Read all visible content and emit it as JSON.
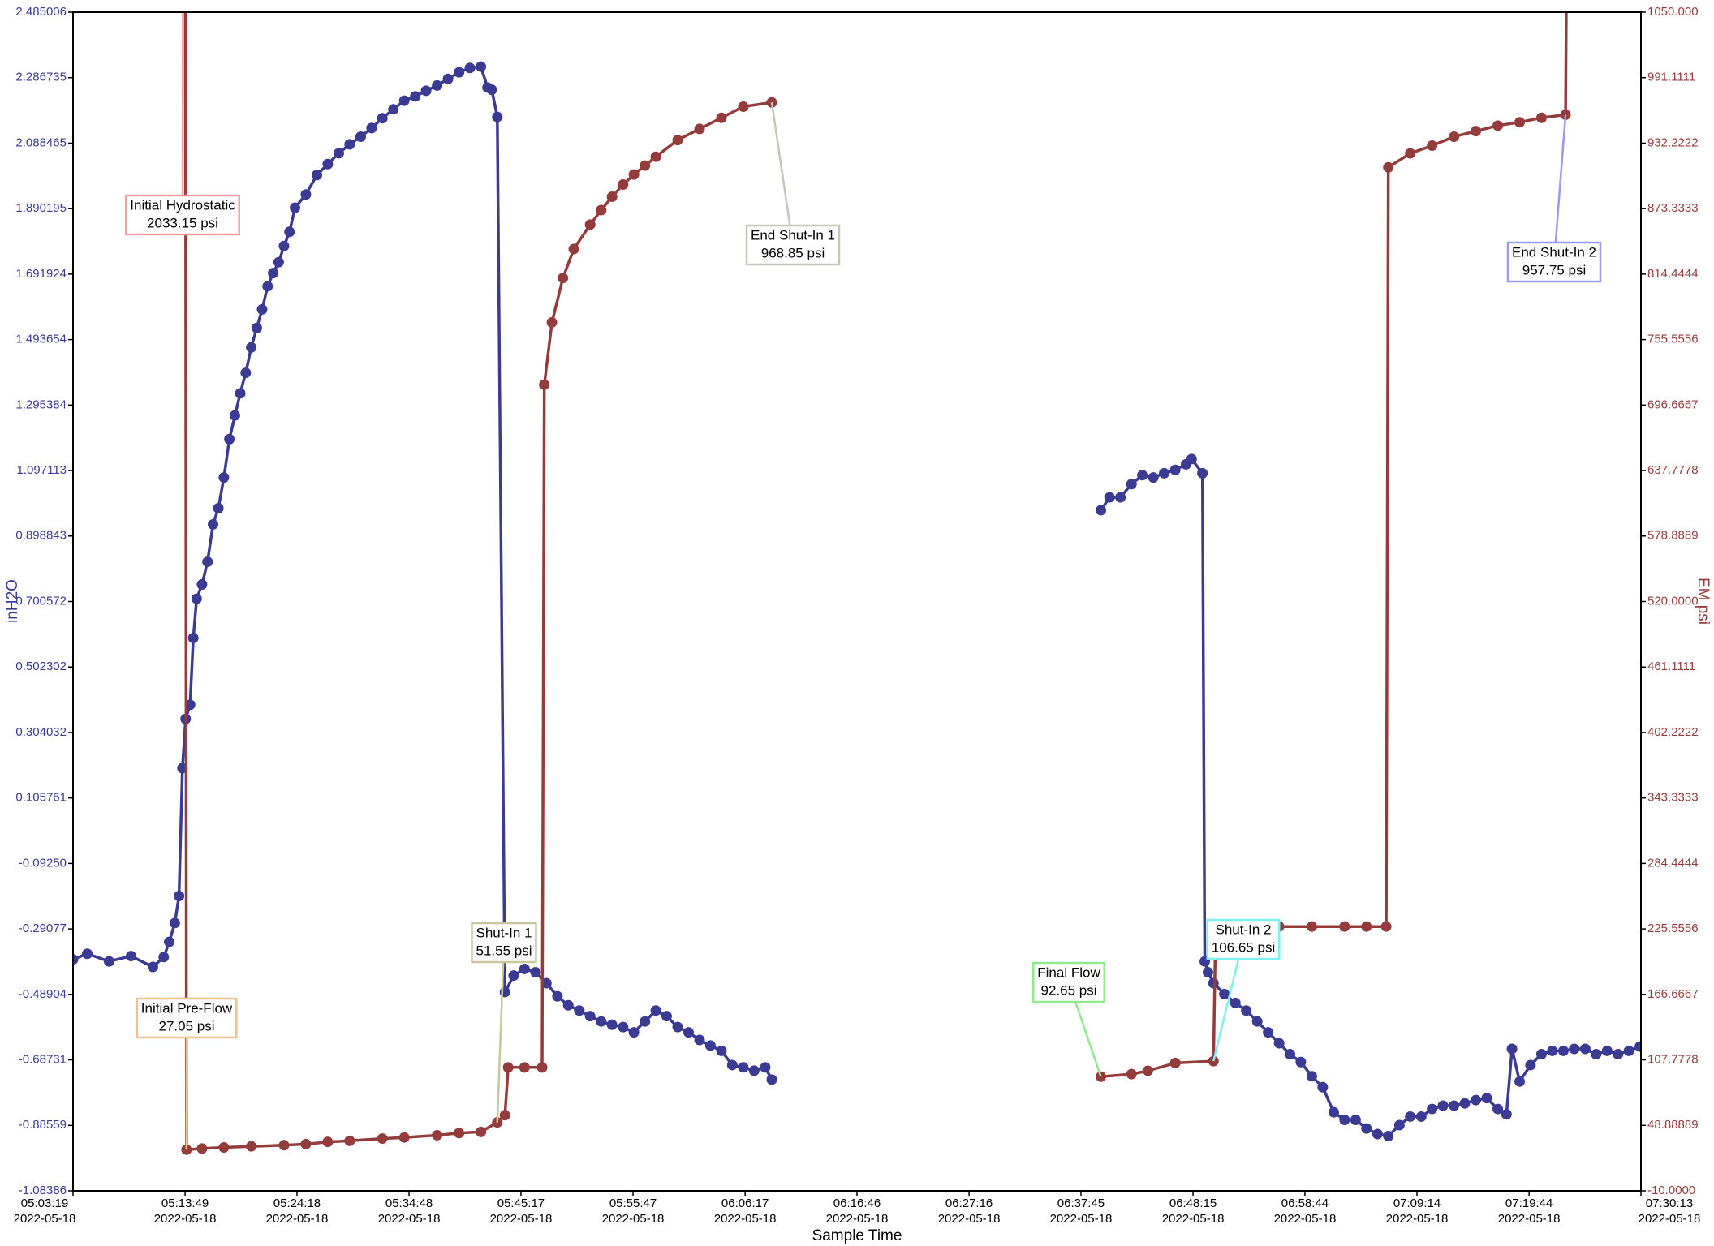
{
  "chart_data": {
    "type": "line",
    "xlabel": "Sample Time",
    "ylabel": "inH2O",
    "y2label": "EM psi",
    "xlim": [
      "2022-05-18T05:03:19",
      "2022-05-18T07:30:13"
    ],
    "xticks": [
      {
        "value": "2022-05-18T05:03:19",
        "label": [
          "05:03:19",
          "2022-05-18"
        ]
      },
      {
        "value": "2022-05-18T05:13:49",
        "label": [
          "05:13:49",
          "2022-05-18"
        ]
      },
      {
        "value": "2022-05-18T05:24:18",
        "label": [
          "05:24:18",
          "2022-05-18"
        ]
      },
      {
        "value": "2022-05-18T05:34:48",
        "label": [
          "05:34:48",
          "2022-05-18"
        ]
      },
      {
        "value": "2022-05-18T05:45:17",
        "label": [
          "05:45:17",
          "2022-05-18"
        ]
      },
      {
        "value": "2022-05-18T05:55:47",
        "label": [
          "05:55:47",
          "2022-05-18"
        ]
      },
      {
        "value": "2022-05-18T06:06:17",
        "label": [
          "06:06:17",
          "2022-05-18"
        ]
      },
      {
        "value": "2022-05-18T06:16:46",
        "label": [
          "06:16:46",
          "2022-05-18"
        ]
      },
      {
        "value": "2022-05-18T06:27:16",
        "label": [
          "06:27:16",
          "2022-05-18"
        ]
      },
      {
        "value": "2022-05-18T06:37:45",
        "label": [
          "06:37:45",
          "2022-05-18"
        ]
      },
      {
        "value": "2022-05-18T06:48:15",
        "label": [
          "06:48:15",
          "2022-05-18"
        ]
      },
      {
        "value": "2022-05-18T06:58:44",
        "label": [
          "06:58:44",
          "2022-05-18"
        ]
      },
      {
        "value": "2022-05-18T07:09:14",
        "label": [
          "07:09:14",
          "2022-05-18"
        ]
      },
      {
        "value": "2022-05-18T07:19:44",
        "label": [
          "07:19:44",
          "2022-05-18"
        ]
      },
      {
        "value": "2022-05-18T07:30:13",
        "label": [
          "07:30:13",
          "2022-05-18"
        ]
      }
    ],
    "ylim": [
      -1.08386,
      2.485006
    ],
    "yticks": [
      -1.08386,
      -0.88559,
      -0.68731,
      -0.48904,
      -0.29077,
      {
        "value": -0.0925,
        "label": "-0.09250"
      },
      0.105761,
      0.304032,
      0.502302,
      0.700572,
      0.898843,
      1.097113,
      1.295384,
      1.493654,
      1.691924,
      1.890195,
      2.088465,
      2.286735,
      2.485006
    ],
    "y2lim": [
      -10,
      1050
    ],
    "y2ticks": [
      {
        "value": -10,
        "label": "-10.0000"
      },
      48.88889,
      107.7778,
      166.6667,
      225.5556,
      284.4444,
      343.3333,
      402.2222,
      461.1111,
      {
        "value": 520,
        "label": "520.0000"
      },
      578.8889,
      637.7778,
      696.6667,
      755.5556,
      814.4444,
      873.3333,
      932.2222,
      991.1111,
      {
        "value": 1050,
        "label": "1050.000"
      }
    ],
    "series": [
      {
        "color": "#3b3b94",
        "axis": "y",
        "x": [
          "2022-05-18T05:03:19",
          "2022-05-18T05:04:39",
          "2022-05-18T05:06:42",
          "2022-05-18T05:08:45",
          "2022-05-18T05:10:48",
          "2022-05-18T05:11:49",
          "2022-05-18T05:12:20",
          "2022-05-18T05:12:51",
          "2022-05-18T05:13:15",
          "2022-05-18T05:13:34",
          "2022-05-18T05:13:52",
          "2022-05-18T05:14:17",
          "2022-05-18T05:14:35",
          "2022-05-18T05:14:54",
          "2022-05-18T05:15:24",
          "2022-05-18T05:15:55",
          "2022-05-18T05:16:26",
          "2022-05-18T05:16:56",
          "2022-05-18T05:17:27",
          "2022-05-18T05:17:58",
          "2022-05-18T05:18:29",
          "2022-05-18T05:18:59",
          "2022-05-18T05:19:30",
          "2022-05-18T05:20:01",
          "2022-05-18T05:20:32",
          "2022-05-18T05:21:02",
          "2022-05-18T05:21:33",
          "2022-05-18T05:22:04",
          "2022-05-18T05:22:35",
          "2022-05-18T05:23:05",
          "2022-05-18T05:23:36",
          "2022-05-18T05:24:07",
          "2022-05-18T05:25:08",
          "2022-05-18T05:26:10",
          "2022-05-18T05:27:11",
          "2022-05-18T05:28:13",
          "2022-05-18T05:29:14",
          "2022-05-18T05:30:16",
          "2022-05-18T05:31:17",
          "2022-05-18T05:32:18",
          "2022-05-18T05:33:20",
          "2022-05-18T05:34:21",
          "2022-05-18T05:35:23",
          "2022-05-18T05:36:24",
          "2022-05-18T05:37:26",
          "2022-05-18T05:38:27",
          "2022-05-18T05:39:29",
          "2022-05-18T05:40:30",
          "2022-05-18T05:41:32",
          "2022-05-18T05:42:09",
          "2022-05-18T05:42:33",
          "2022-05-18T05:43:04",
          "2022-05-18T05:43:47",
          "2022-05-18T05:44:36",
          "2022-05-18T05:45:37",
          "2022-05-18T05:46:39",
          "2022-05-18T05:47:40",
          "2022-05-18T05:48:42",
          "2022-05-18T05:49:43",
          "2022-05-18T05:50:45",
          "2022-05-18T05:51:46",
          "2022-05-18T05:52:48",
          "2022-05-18T05:53:49",
          "2022-05-18T05:54:51",
          "2022-05-18T05:55:52",
          "2022-05-18T05:56:54",
          "2022-05-18T05:57:55",
          "2022-05-18T05:58:56",
          "2022-05-18T05:59:58",
          "2022-05-18T06:00:59",
          "2022-05-18T06:02:01",
          "2022-05-18T06:03:02",
          "2022-05-18T06:04:04",
          "2022-05-18T06:05:05",
          "2022-05-18T06:06:07",
          "2022-05-18T06:07:08",
          "2022-05-18T06:08:10",
          "2022-05-18T06:08:47",
          "2022-05-18T06:24:00",
          "2022-05-18T06:39:37",
          "2022-05-18T06:40:26",
          "2022-05-18T06:41:27",
          "2022-05-18T06:42:29",
          "2022-05-18T06:43:30",
          "2022-05-18T06:44:32",
          "2022-05-18T06:45:33",
          "2022-05-18T06:46:35",
          "2022-05-18T06:47:36",
          "2022-05-18T06:48:07",
          "2022-05-18T06:49:08",
          "2022-05-18T06:49:21",
          "2022-05-18T06:49:39",
          "2022-05-18T06:50:10",
          "2022-05-18T06:51:11",
          "2022-05-18T06:52:13",
          "2022-05-18T06:53:14",
          "2022-05-18T06:54:16",
          "2022-05-18T06:55:17",
          "2022-05-18T06:56:19",
          "2022-05-18T06:57:20",
          "2022-05-18T06:58:21",
          "2022-05-18T06:59:23",
          "2022-05-18T07:00:24",
          "2022-05-18T07:01:26",
          "2022-05-18T07:02:27",
          "2022-05-18T07:03:29",
          "2022-05-18T07:04:30",
          "2022-05-18T07:05:32",
          "2022-05-18T07:06:33",
          "2022-05-18T07:07:35",
          "2022-05-18T07:08:36",
          "2022-05-18T07:09:38",
          "2022-05-18T07:10:39",
          "2022-05-18T07:11:40",
          "2022-05-18T07:12:42",
          "2022-05-18T07:13:43",
          "2022-05-18T07:14:45",
          "2022-05-18T07:15:46",
          "2022-05-18T07:16:48",
          "2022-05-18T07:17:37",
          "2022-05-18T07:18:08",
          "2022-05-18T07:18:51",
          "2022-05-18T07:19:52",
          "2022-05-18T07:20:54",
          "2022-05-18T07:21:55",
          "2022-05-18T07:22:57",
          "2022-05-18T07:23:58",
          "2022-05-18T07:25:00",
          "2022-05-18T07:26:01",
          "2022-05-18T07:27:03",
          "2022-05-18T07:28:04",
          "2022-05-18T07:29:05",
          "2022-05-18T07:30:07"
        ],
        "values": [
          -0.383,
          -0.366,
          -0.389,
          -0.373,
          -0.406,
          -0.376,
          -0.33,
          -0.273,
          -0.191,
          0.196,
          0.345,
          0.388,
          0.59,
          0.709,
          0.752,
          0.821,
          0.934,
          0.983,
          1.076,
          1.192,
          1.264,
          1.331,
          1.393,
          1.47,
          1.529,
          1.585,
          1.655,
          1.695,
          1.728,
          1.777,
          1.82,
          1.893,
          1.933,
          1.992,
          2.025,
          2.058,
          2.085,
          2.108,
          2.134,
          2.164,
          2.191,
          2.217,
          2.23,
          2.247,
          2.263,
          2.283,
          2.303,
          2.316,
          2.32,
          2.257,
          2.25,
          2.168,
          -0.482,
          -0.432,
          -0.412,
          -0.422,
          -0.455,
          -0.495,
          -0.522,
          -0.538,
          -0.555,
          -0.571,
          -0.581,
          -0.588,
          -0.604,
          -0.571,
          -0.538,
          -0.555,
          -0.588,
          -0.604,
          -0.627,
          -0.644,
          -0.66,
          -0.703,
          -0.71,
          -0.72,
          -0.71,
          -0.747,
          null,
          0.977,
          1.016,
          1.016,
          1.056,
          1.083,
          1.076,
          1.089,
          1.099,
          1.116,
          1.132,
          1.089,
          -0.389,
          -0.422,
          -0.455,
          -0.488,
          -0.515,
          -0.538,
          -0.571,
          -0.604,
          -0.637,
          -0.67,
          -0.694,
          -0.737,
          -0.77,
          -0.846,
          -0.869,
          -0.869,
          -0.895,
          -0.912,
          -0.918,
          -0.885,
          -0.859,
          -0.859,
          -0.836,
          -0.826,
          -0.826,
          -0.819,
          -0.809,
          -0.803,
          -0.836,
          -0.852,
          -0.654,
          -0.753,
          -0.703,
          -0.67,
          -0.66,
          -0.66,
          -0.654,
          -0.654,
          -0.67,
          -0.66,
          -0.67,
          -0.66,
          -0.647
        ]
      },
      {
        "color": "#943c3c",
        "axis": "y2",
        "x": [
          "2022-05-18T05:13:46",
          "2022-05-18T05:13:57",
          "2022-05-18T05:15:24",
          "2022-05-18T05:17:27",
          "2022-05-18T05:20:01",
          "2022-05-18T05:23:05",
          "2022-05-18T05:25:08",
          "2022-05-18T05:27:11",
          "2022-05-18T05:29:14",
          "2022-05-18T05:32:18",
          "2022-05-18T05:34:21",
          "2022-05-18T05:37:26",
          "2022-05-18T05:39:29",
          "2022-05-18T05:41:32",
          "2022-05-18T05:43:04",
          "2022-05-18T05:43:47",
          "2022-05-18T05:44:05",
          "2022-05-18T05:45:37",
          "2022-05-18T05:47:16",
          "2022-05-18T05:47:28",
          "2022-05-18T05:48:11",
          "2022-05-18T05:49:13",
          "2022-05-18T05:50:14",
          "2022-05-18T05:51:46",
          "2022-05-18T05:52:48",
          "2022-05-18T05:53:49",
          "2022-05-18T05:54:51",
          "2022-05-18T05:55:52",
          "2022-05-18T05:56:54",
          "2022-05-18T05:57:55",
          "2022-05-18T05:59:58",
          "2022-05-18T06:02:01",
          "2022-05-18T06:04:04",
          "2022-05-18T06:06:07",
          "2022-05-18T06:08:47",
          "2022-05-18T06:24:00",
          "2022-05-18T06:39:37",
          "2022-05-18T06:42:29",
          "2022-05-18T06:44:01",
          "2022-05-18T06:46:35",
          "2022-05-18T06:50:10",
          "2022-05-18T06:50:22",
          "2022-05-18T06:53:14",
          "2022-05-18T06:56:19",
          "2022-05-18T06:59:23",
          "2022-05-18T07:02:27",
          "2022-05-18T07:04:30",
          "2022-05-18T07:06:21",
          "2022-05-18T07:06:33",
          "2022-05-18T07:08:36",
          "2022-05-18T07:10:39",
          "2022-05-18T07:12:42",
          "2022-05-18T07:14:45",
          "2022-05-18T07:16:48",
          "2022-05-18T07:18:51",
          "2022-05-18T07:20:54",
          "2022-05-18T07:23:09",
          "2022-05-18T07:23:15"
        ],
        "values": [
          2033.15,
          27.05,
          28,
          29,
          30,
          31,
          32,
          34,
          35,
          37,
          38,
          40,
          42,
          43,
          51.55,
          58,
          101,
          101,
          101,
          715,
          771,
          811,
          837,
          859,
          872,
          884,
          895,
          904,
          912,
          920,
          935,
          945,
          955,
          965,
          968.85,
          null,
          92.65,
          95,
          98,
          105,
          106.65,
          227.7,
          227.7,
          227.7,
          227.7,
          227.7,
          227.7,
          227.7,
          910.5,
          923,
          930,
          938,
          943,
          948,
          951,
          955,
          957.75,
          1100
        ]
      }
    ],
    "annotations": [
      {
        "title": "Initial Hydrostatic",
        "text": "2033.15 psi",
        "x": "2022-05-18T05:13:46",
        "value": 2033.15,
        "color": "#f4a0a0"
      },
      {
        "title": "Initial Pre-Flow",
        "text": "27.05 psi",
        "x": "2022-05-18T05:13:57",
        "value": 27.05,
        "color": "#f6c08c"
      },
      {
        "title": "Shut-In 1",
        "text": "51.55 psi",
        "x": "2022-05-18T05:43:04",
        "value": 51.55,
        "color": "#c9c79c"
      },
      {
        "title": "End Shut-In 1",
        "text": "968.85 psi",
        "x": "2022-05-18T06:08:47",
        "value": 968.85,
        "color": "#c6c6b8"
      },
      {
        "title": "Final Flow",
        "text": "92.65 psi",
        "x": "2022-05-18T06:39:37",
        "value": 92.65,
        "color": "#90e890"
      },
      {
        "title": "Shut-In 2",
        "text": "106.65 psi",
        "x": "2022-05-18T06:50:10",
        "value": 106.65,
        "color": "#7ff0f0"
      },
      {
        "title": "End Shut-In 2",
        "text": "957.75 psi",
        "x": "2022-05-18T07:23:09",
        "value": 957.75,
        "color": "#9a9af0"
      }
    ]
  }
}
